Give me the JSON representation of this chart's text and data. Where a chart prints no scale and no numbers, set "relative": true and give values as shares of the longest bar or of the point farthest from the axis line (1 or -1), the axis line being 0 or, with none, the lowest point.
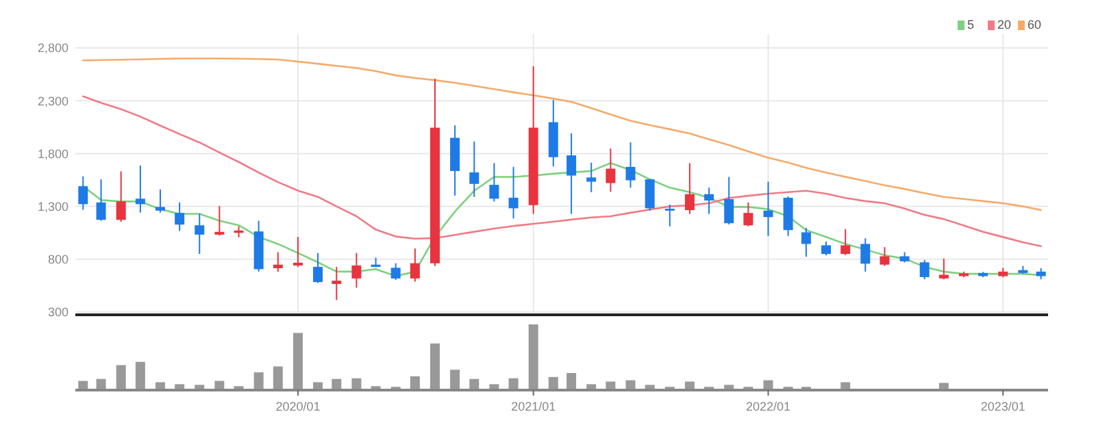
{
  "chart_data": [
    {
      "type": "candlestick",
      "x": [
        "2019-02",
        "2019-03",
        "2019-04",
        "2019-05",
        "2019-06",
        "2019-07",
        "2019-08",
        "2019-09",
        "2019-10",
        "2019-11",
        "2019-12",
        "2020-01",
        "2020-02",
        "2020-03",
        "2020-04",
        "2020-05",
        "2020-06",
        "2020-07",
        "2020-08",
        "2020-09",
        "2020-10",
        "2020-11",
        "2020-12",
        "2021-01",
        "2021-02",
        "2021-03",
        "2021-04",
        "2021-05",
        "2021-06",
        "2021-07",
        "2021-08",
        "2021-09",
        "2021-10",
        "2021-11",
        "2021-12",
        "2022-01",
        "2022-02",
        "2022-03",
        "2022-04",
        "2022-05",
        "2022-06",
        "2022-07",
        "2022-08",
        "2022-09",
        "2022-10",
        "2022-11",
        "2022-12",
        "2023-01",
        "2023-02",
        "2023-03"
      ],
      "ohlc": [
        [
          1491,
          1583,
          1268,
          1321
        ],
        [
          1338,
          1556,
          1164,
          1173
        ],
        [
          1173,
          1631,
          1155,
          1347
        ],
        [
          1373,
          1687,
          1242,
          1321
        ],
        [
          1295,
          1461,
          1242,
          1260
        ],
        [
          1238,
          1338,
          1068,
          1128
        ],
        [
          1121,
          1229,
          850,
          1033
        ],
        [
          1033,
          1304,
          1024,
          1059
        ],
        [
          1050,
          1111,
          1007,
          1072
        ],
        [
          1063,
          1164,
          683,
          706
        ],
        [
          715,
          867,
          683,
          749
        ],
        [
          741,
          1011,
          728,
          767
        ],
        [
          728,
          859,
          575,
          584
        ],
        [
          566,
          728,
          414,
          597
        ],
        [
          618,
          859,
          531,
          741
        ],
        [
          749,
          815,
          725,
          728
        ],
        [
          719,
          762,
          605,
          618
        ],
        [
          618,
          902,
          588,
          762
        ],
        [
          762,
          2508,
          736,
          2045
        ],
        [
          1949,
          2067,
          1403,
          1635
        ],
        [
          1622,
          1914,
          1390,
          1513
        ],
        [
          1504,
          1710,
          1347,
          1373
        ],
        [
          1382,
          1674,
          1186,
          1282
        ],
        [
          1312,
          2626,
          1229,
          2045
        ],
        [
          2097,
          2307,
          1678,
          1766
        ],
        [
          1783,
          1992,
          1229,
          1592
        ],
        [
          1574,
          1714,
          1435,
          1534
        ],
        [
          1521,
          1848,
          1439,
          1657
        ],
        [
          1674,
          1906,
          1478,
          1547
        ],
        [
          1556,
          1560,
          1260,
          1282
        ],
        [
          1278,
          1317,
          1111,
          1260
        ],
        [
          1265,
          1710,
          1229,
          1416
        ],
        [
          1416,
          1478,
          1229,
          1356
        ],
        [
          1369,
          1579,
          1130,
          1141
        ],
        [
          1121,
          1338,
          1111,
          1238
        ],
        [
          1260,
          1534,
          1020,
          1199
        ],
        [
          1382,
          1395,
          1020,
          1076
        ],
        [
          1055,
          1098,
          824,
          945
        ],
        [
          932,
          967,
          837,
          850
        ],
        [
          850,
          1085,
          840,
          932
        ],
        [
          945,
          998,
          683,
          758
        ],
        [
          749,
          915,
          736,
          828
        ],
        [
          828,
          867,
          770,
          780
        ],
        [
          771,
          793,
          610,
          631
        ],
        [
          618,
          806,
          610,
          653
        ],
        [
          640,
          683,
          630,
          666
        ],
        [
          670,
          680,
          630,
          640
        ],
        [
          640,
          719,
          630,
          683
        ],
        [
          697,
          736,
          665,
          670
        ],
        [
          683,
          715,
          610,
          640
        ]
      ],
      "colors": [
        "#1e7be6",
        "#1e7be6",
        "#e8343f",
        "#1e7be6",
        "#1e7be6",
        "#1e7be6",
        "#1e7be6",
        "#e8343f",
        "#e8343f",
        "#1e7be6",
        "#e8343f",
        "#e8343f",
        "#1e7be6",
        "#e8343f",
        "#e8343f",
        "#1e7be6",
        "#1e7be6",
        "#e8343f",
        "#e8343f",
        "#1e7be6",
        "#1e7be6",
        "#1e7be6",
        "#1e7be6",
        "#e8343f",
        "#1e7be6",
        "#1e7be6",
        "#1e7be6",
        "#e8343f",
        "#1e7be6",
        "#1e7be6",
        "#1e7be6",
        "#e8343f",
        "#1e7be6",
        "#1e7be6",
        "#e8343f",
        "#1e7be6",
        "#1e7be6",
        "#1e7be6",
        "#1e7be6",
        "#e8343f",
        "#1e7be6",
        "#e8343f",
        "#1e7be6",
        "#1e7be6",
        "#e8343f",
        "#e8343f",
        "#1e7be6",
        "#e8343f",
        "#1e7be6",
        "#1e7be6"
      ],
      "series": [
        {
          "type": "line",
          "name": "5",
          "color": "#7fd07f",
          "values": [
            1491,
            1360,
            1347,
            1347,
            1273,
            1229,
            1229,
            1164,
            1121,
            1011,
            945,
            859,
            771,
            683,
            683,
            706,
            640,
            683,
            1011,
            1251,
            1448,
            1579,
            1579,
            1592,
            1609,
            1622,
            1635,
            1710,
            1644,
            1556,
            1478,
            1435,
            1382,
            1295,
            1295,
            1273,
            1207,
            1076,
            1011,
            945,
            893,
            837,
            806,
            728,
            683,
            662,
            662,
            662,
            662,
            650
          ]
        },
        {
          "type": "line",
          "name": "20",
          "color": "#f07a85",
          "values": [
            2342,
            2280,
            2220,
            2150,
            2065,
            1985,
            1905,
            1810,
            1720,
            1620,
            1530,
            1450,
            1390,
            1300,
            1207,
            1080,
            1015,
            995,
            1000,
            1030,
            1060,
            1090,
            1115,
            1135,
            1155,
            1175,
            1195,
            1207,
            1240,
            1270,
            1300,
            1310,
            1330,
            1380,
            1400,
            1420,
            1435,
            1448,
            1420,
            1380,
            1350,
            1330,
            1280,
            1220,
            1180,
            1120,
            1060,
            1010,
            960,
            924
          ]
        },
        {
          "type": "line",
          "name": "60",
          "color": "#f5aa6a",
          "values": [
            2682,
            2685,
            2688,
            2692,
            2696,
            2700,
            2700,
            2700,
            2698,
            2695,
            2690,
            2670,
            2650,
            2630,
            2610,
            2580,
            2540,
            2515,
            2495,
            2470,
            2440,
            2410,
            2380,
            2351,
            2320,
            2290,
            2230,
            2170,
            2110,
            2070,
            2030,
            1990,
            1935,
            1880,
            1820,
            1760,
            1715,
            1665,
            1620,
            1580,
            1540,
            1500,
            1465,
            1425,
            1390,
            1370,
            1350,
            1330,
            1300,
            1265
          ]
        }
      ],
      "xlim": [
        "2019-01-20",
        "2023-03-12"
      ],
      "xticks": [
        {
          "value": "2020-01",
          "label": null
        },
        {
          "value": "2021-01",
          "label": null
        },
        {
          "value": "2022-01",
          "label": null
        },
        {
          "value": "2023-01",
          "label": null
        }
      ],
      "ylim": [
        300,
        2800
      ],
      "yticks": [
        {
          "value": 300,
          "label": "300"
        },
        {
          "value": 800,
          "label": "800"
        },
        {
          "value": 1300,
          "label": "1,300"
        },
        {
          "value": 1800,
          "label": "1,800"
        },
        {
          "value": 2300,
          "label": "2,300"
        },
        {
          "value": 2800,
          "label": "2,800"
        }
      ],
      "grid": true,
      "legend": "top right",
      "tick_labels": "y"
    },
    {
      "type": "bar",
      "x": [
        "2019-02",
        "2019-03",
        "2019-04",
        "2019-05",
        "2019-06",
        "2019-07",
        "2019-08",
        "2019-09",
        "2019-10",
        "2019-11",
        "2019-12",
        "2020-01",
        "2020-02",
        "2020-03",
        "2020-04",
        "2020-05",
        "2020-06",
        "2020-07",
        "2020-08",
        "2020-09",
        "2020-10",
        "2020-11",
        "2020-12",
        "2021-01",
        "2021-02",
        "2021-03",
        "2021-04",
        "2021-05",
        "2021-06",
        "2021-07",
        "2021-08",
        "2021-09",
        "2021-10",
        "2021-11",
        "2021-12",
        "2022-01",
        "2022-02",
        "2022-03",
        "2022-04",
        "2022-05",
        "2022-06",
        "2022-07",
        "2022-08",
        "2022-09",
        "2022-10",
        "2022-11",
        "2022-12",
        "2023-01",
        "2023-02",
        "2023-03"
      ],
      "values": [
        0.14,
        0.17,
        0.38,
        0.43,
        0.12,
        0.09,
        0.08,
        0.14,
        0.06,
        0.27,
        0.36,
        0.87,
        0.12,
        0.17,
        0.18,
        0.06,
        0.05,
        0.21,
        0.71,
        0.31,
        0.17,
        0.09,
        0.18,
        1,
        0.2,
        0.26,
        0.09,
        0.13,
        0.15,
        0.08,
        0.05,
        0.13,
        0.05,
        0.08,
        0.05,
        0.15,
        0.05,
        0.05,
        0.02,
        0.12,
        0.02,
        0.02,
        0.02,
        0.01,
        0.11,
        0.02,
        0.02,
        0.02,
        0.02,
        0.02
      ],
      "color": "#999999",
      "relative": true,
      "xlim": [
        "2019-01-20",
        "2023-03-12"
      ],
      "xticks": [
        {
          "value": "2020-01",
          "label": "2020/01"
        },
        {
          "value": "2021-01",
          "label": "2021/01"
        },
        {
          "value": "2022-01",
          "label": "2022/01"
        },
        {
          "value": "2023-01",
          "label": "2023/01"
        }
      ],
      "tick_labels": "x"
    }
  ]
}
